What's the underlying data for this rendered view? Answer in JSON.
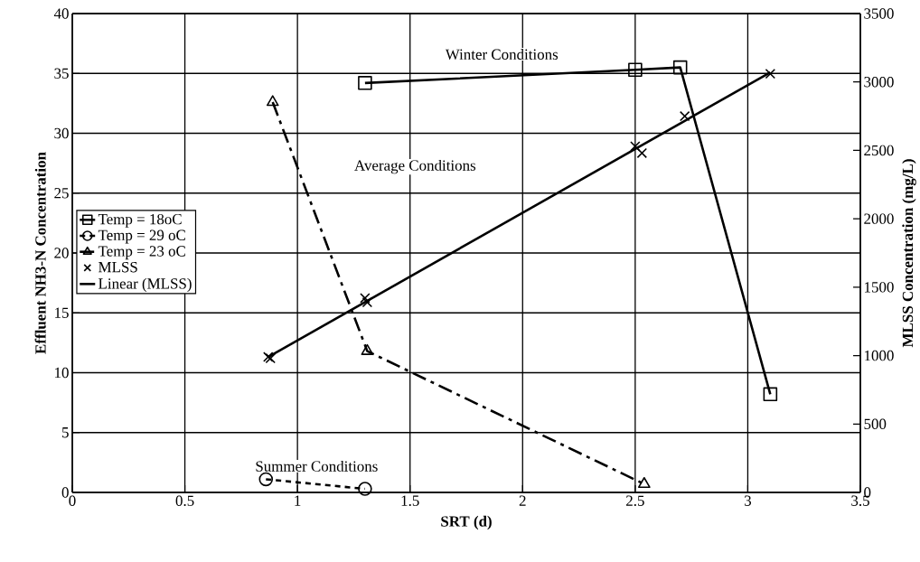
{
  "chart_data": {
    "type": "line",
    "xlabel": "SRT (d)",
    "ylabel": "Effluent NH3-N Concentration",
    "y2label": "MLSS Concentration (mg/L)",
    "xlim": [
      0,
      3.5
    ],
    "xticks": [
      0,
      0.5,
      1,
      1.5,
      2,
      2.5,
      3,
      3.5
    ],
    "ylim": [
      0,
      40
    ],
    "yticks": [
      0,
      5,
      10,
      15,
      20,
      25,
      30,
      35,
      40
    ],
    "y2lim": [
      0,
      3500
    ],
    "y2ticks": [
      0,
      500,
      1000,
      1500,
      2000,
      2500,
      3000,
      3500
    ],
    "grid": true,
    "legend": "left",
    "series": [
      {
        "name": "Temp = 18oC",
        "color": "#000000",
        "marker": "square",
        "line_style": "solid",
        "x": [
          1.3,
          2.5,
          2.7,
          3.1
        ],
        "values": [
          34.2,
          35.3,
          35.5,
          8.2
        ]
      },
      {
        "name": "Temp = 29 oC",
        "color": "#000000",
        "marker": "circle",
        "line_style": "dotted",
        "x": [
          0.86,
          1.3
        ],
        "values": [
          1.1,
          0.3
        ]
      },
      {
        "name": "Temp = 23 oC",
        "color": "#000000",
        "marker": "triangle",
        "line_style": "dashed",
        "x": [
          0.89,
          1.31,
          2.54
        ],
        "values": [
          32.6,
          11.8,
          0.7
        ]
      },
      {
        "name": "MLSS",
        "type": "scatter",
        "axis": "y2",
        "color": "#000000",
        "marker": "cross",
        "x": [
          0.87,
          0.88,
          1.3,
          1.31,
          2.5,
          2.53,
          2.72,
          3.1
        ],
        "values": [
          990,
          980,
          1420,
          1390,
          2530,
          2480,
          2750,
          3060
        ]
      },
      {
        "name": "Linear (MLSS)",
        "axis": "y2",
        "color": "#000000",
        "marker": "none",
        "line_style": "solid",
        "x": [
          0.87,
          3.1
        ],
        "values": [
          990,
          3070
        ]
      }
    ],
    "annotations": [
      "Winter Conditions",
      "Average Conditions",
      "Summer Conditions"
    ]
  }
}
